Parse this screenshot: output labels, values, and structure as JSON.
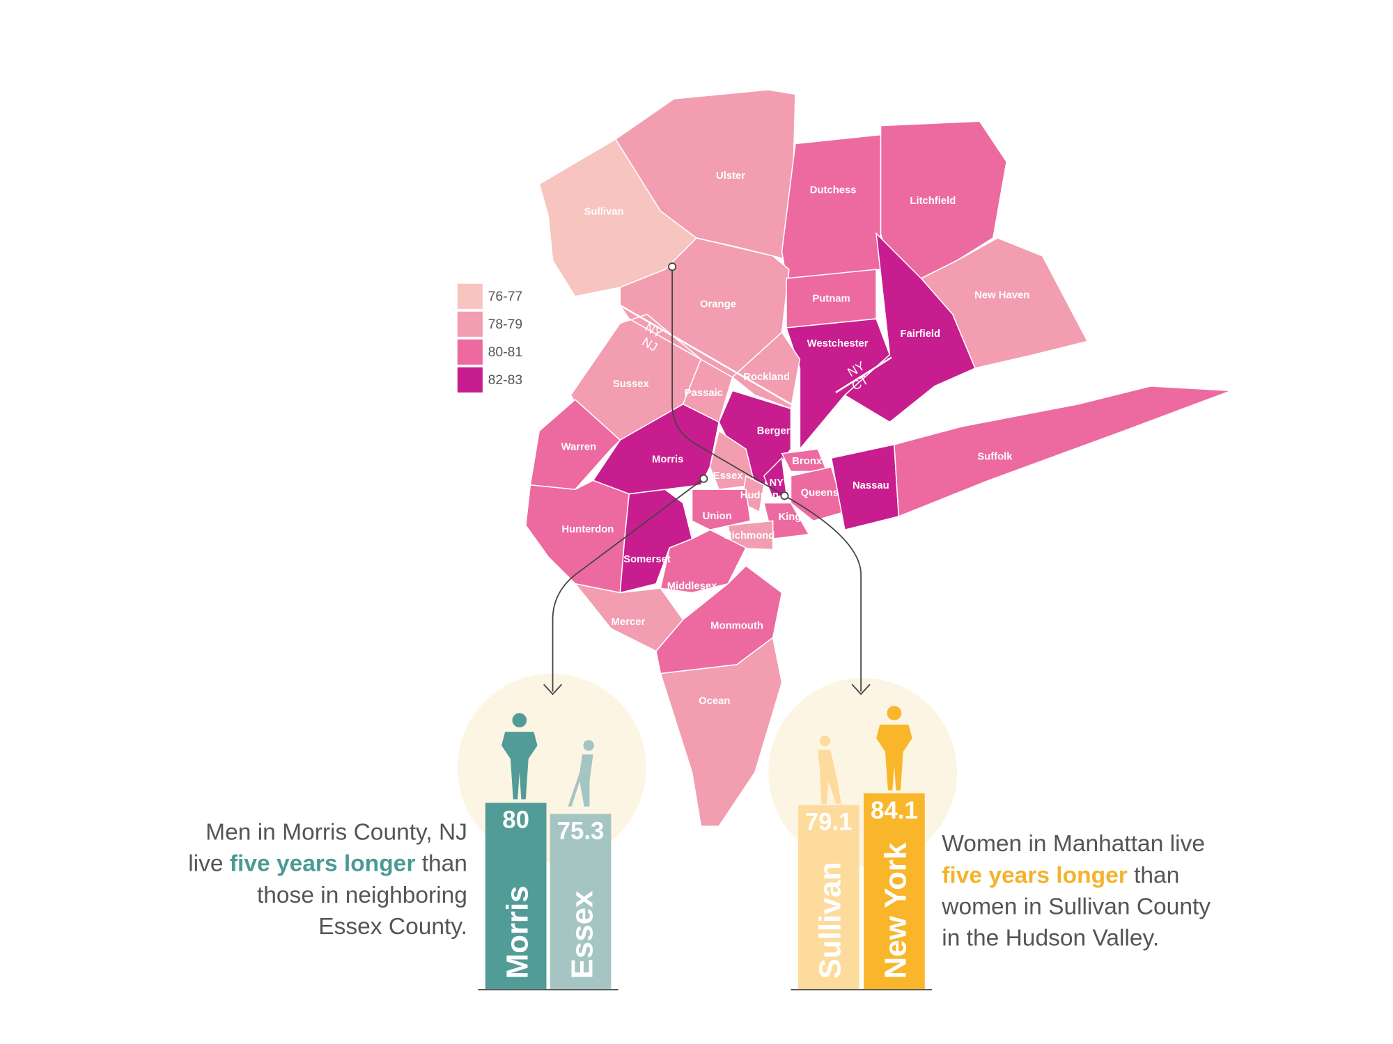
{
  "legend": [
    {
      "label": "76-77",
      "color": "#f7c4c0"
    },
    {
      "label": "78-79",
      "color": "#f29db0"
    },
    {
      "label": "80-81",
      "color": "#ec6aa0"
    },
    {
      "label": "82-83",
      "color": "#c81d8e"
    }
  ],
  "counties": [
    {
      "name": "Sullivan",
      "bin": 0
    },
    {
      "name": "Ulster",
      "bin": 1
    },
    {
      "name": "Dutchess",
      "bin": 2
    },
    {
      "name": "Litchfield",
      "bin": 2
    },
    {
      "name": "Orange",
      "bin": 1
    },
    {
      "name": "Putnam",
      "bin": 2
    },
    {
      "name": "New Haven",
      "bin": 1
    },
    {
      "name": "Westchester",
      "bin": 3
    },
    {
      "name": "Fairfield",
      "bin": 3
    },
    {
      "name": "Sussex",
      "bin": 1
    },
    {
      "name": "Passaic",
      "bin": 1
    },
    {
      "name": "Rockland",
      "bin": 1
    },
    {
      "name": "Warren",
      "bin": 2
    },
    {
      "name": "Morris",
      "bin": 3
    },
    {
      "name": "Bergen",
      "bin": 3
    },
    {
      "name": "Essex",
      "bin": 1
    },
    {
      "name": "Hudson",
      "bin": 1
    },
    {
      "name": "NY",
      "bin": 3
    },
    {
      "name": "Bronx",
      "bin": 2
    },
    {
      "name": "Queens",
      "bin": 2
    },
    {
      "name": "Kings",
      "bin": 2
    },
    {
      "name": "Nassau",
      "bin": 3
    },
    {
      "name": "Suffolk",
      "bin": 2
    },
    {
      "name": "Richmond",
      "bin": 1
    },
    {
      "name": "Union",
      "bin": 2
    },
    {
      "name": "Hunterdon",
      "bin": 2
    },
    {
      "name": "Somerset",
      "bin": 3
    },
    {
      "name": "Middlesex",
      "bin": 2
    },
    {
      "name": "Mercer",
      "bin": 1
    },
    {
      "name": "Monmouth",
      "bin": 2
    },
    {
      "name": "Ocean",
      "bin": 1
    }
  ],
  "border_labels": [
    [
      "NY",
      "NJ"
    ],
    [
      "NY",
      "CT"
    ]
  ],
  "comparisons": [
    {
      "highlight_color": "#4a9a96",
      "bars": [
        {
          "name": "Morris",
          "value": 80,
          "color": "#529c98"
        },
        {
          "name": "Essex",
          "value": 75.3,
          "color": "#a5c5c2"
        }
      ],
      "caption": [
        [
          {
            "text": "Men in Morris County, NJ"
          }
        ],
        [
          {
            "text": "live "
          },
          {
            "text": "five years longer",
            "em": true
          },
          {
            "text": " than"
          }
        ],
        [
          {
            "text": "those in neighboring"
          }
        ],
        [
          {
            "text": "Essex County."
          }
        ]
      ]
    },
    {
      "highlight_color": "#f3b32b",
      "bars": [
        {
          "name": "Sullivan",
          "value": 79.1,
          "color": "#fddb9c"
        },
        {
          "name": "New York",
          "value": 84.1,
          "color": "#f9b62a"
        }
      ],
      "caption": [
        [
          {
            "text": "Women in Manhattan live"
          }
        ],
        [
          {
            "text": "five years longer",
            "em": true
          },
          {
            "text": " than"
          }
        ],
        [
          {
            "text": "women in Sullivan County"
          }
        ],
        [
          {
            "text": "in the Hudson Valley."
          }
        ]
      ]
    }
  ]
}
